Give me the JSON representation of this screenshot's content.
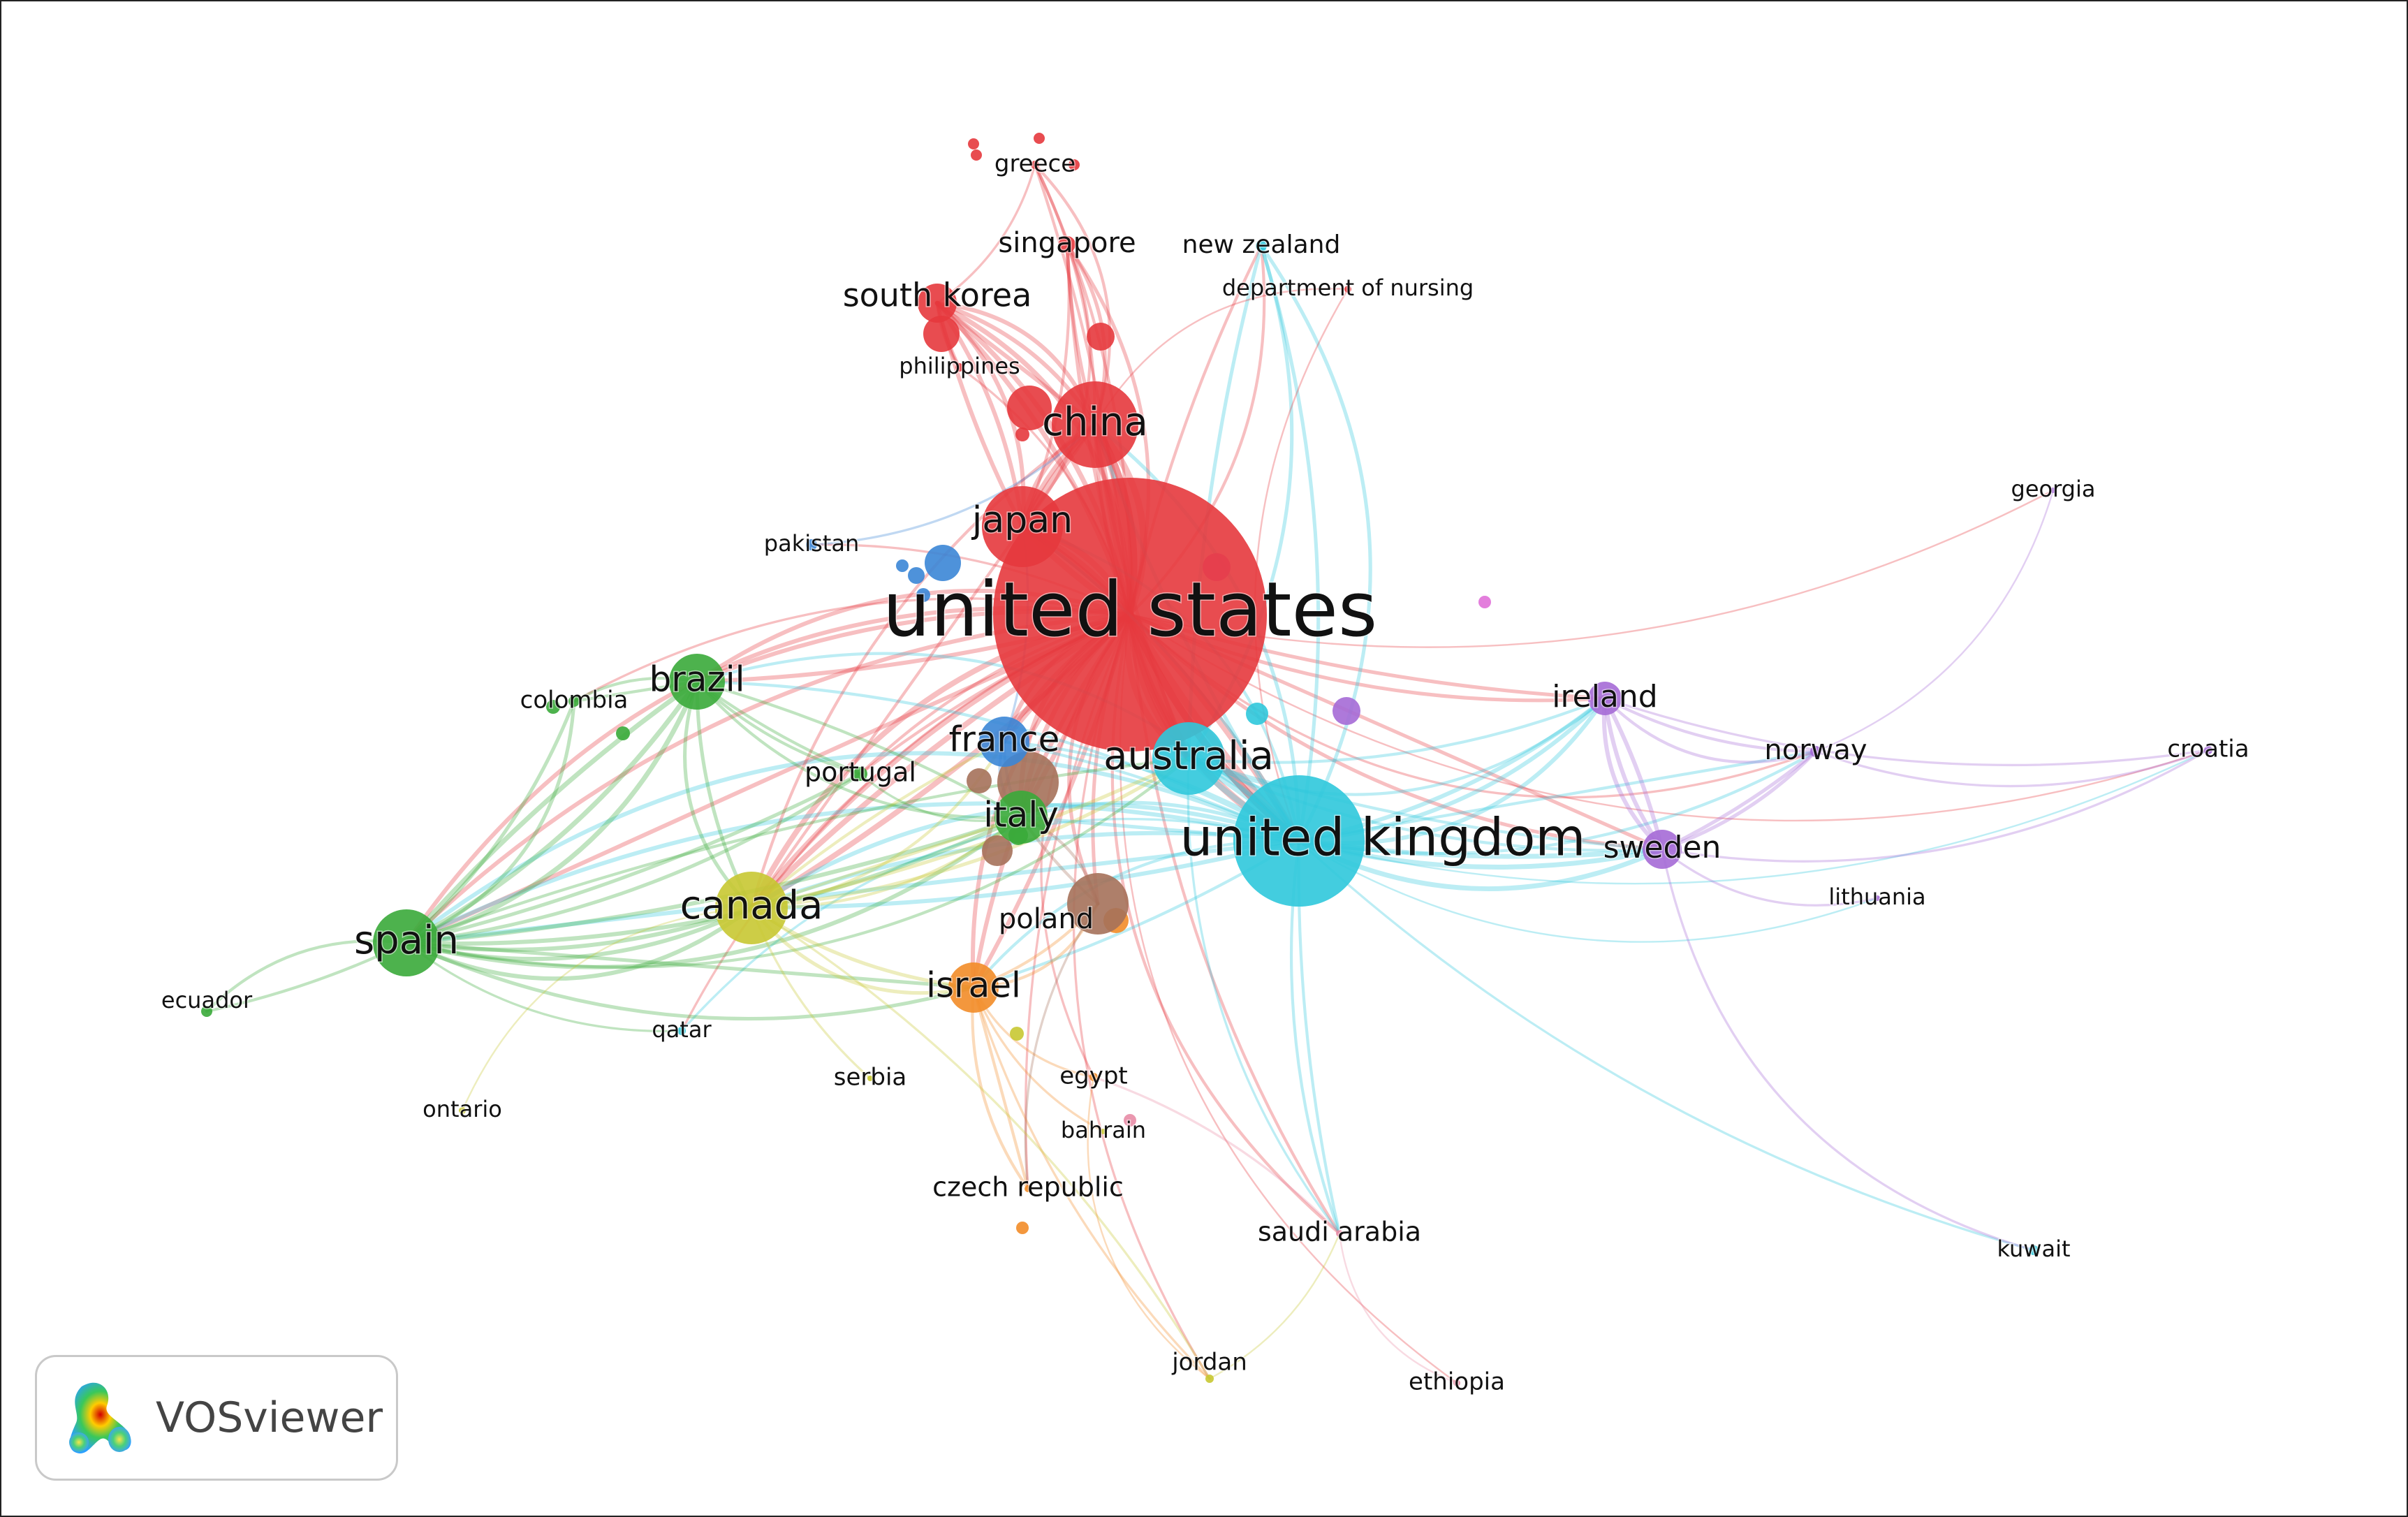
{
  "app": {
    "brand": "VOSviewer"
  },
  "network": {
    "clusters": {
      "red": "#e6393d",
      "cyan": "#2fc8dc",
      "green": "#3aaa3a",
      "blue": "#3b86d6",
      "yellow": "#c8c832",
      "purple": "#a56ad6",
      "orange": "#f28c28",
      "brown": "#a5715a",
      "pink": "#e88ca6",
      "magenta": "#e070d8"
    },
    "nodes": [
      {
        "id": "united-states",
        "label": "united states",
        "cluster": "red",
        "weight": 100
      },
      {
        "id": "united-kingdom",
        "label": "united kingdom",
        "cluster": "cyan",
        "weight": 42
      },
      {
        "id": "china",
        "label": "china",
        "cluster": "red",
        "weight": 18
      },
      {
        "id": "japan",
        "label": "japan",
        "cluster": "red",
        "weight": 16
      },
      {
        "id": "south-korea",
        "label": "south korea",
        "cluster": "red",
        "weight": 8
      },
      {
        "id": "singapore",
        "label": "singapore",
        "cluster": "red",
        "weight": 3
      },
      {
        "id": "greece",
        "label": "greece",
        "cluster": "red",
        "weight": 2
      },
      {
        "id": "philippines",
        "label": "philippines",
        "cluster": "red",
        "weight": 2
      },
      {
        "id": "australia",
        "label": "australia",
        "cluster": "cyan",
        "weight": 18
      },
      {
        "id": "new-zealand",
        "label": "new zealand",
        "cluster": "cyan",
        "weight": 2
      },
      {
        "id": "department-of-nursing",
        "label": "department of nursing",
        "cluster": "red",
        "weight": 1
      },
      {
        "id": "qatar",
        "label": "qatar",
        "cluster": "cyan",
        "weight": 1
      },
      {
        "id": "kuwait",
        "label": "kuwait",
        "cluster": "cyan",
        "weight": 1
      },
      {
        "id": "brazil",
        "label": "brazil",
        "cluster": "green",
        "weight": 11
      },
      {
        "id": "spain",
        "label": "spain",
        "cluster": "green",
        "weight": 18
      },
      {
        "id": "colombia",
        "label": "colombia",
        "cluster": "green",
        "weight": 2
      },
      {
        "id": "ecuador",
        "label": "ecuador",
        "cluster": "green",
        "weight": 2
      },
      {
        "id": "portugal",
        "label": "portugal",
        "cluster": "green",
        "weight": 3
      },
      {
        "id": "italy",
        "label": "italy",
        "cluster": "green",
        "weight": 12
      },
      {
        "id": "france",
        "label": "france",
        "cluster": "blue",
        "weight": 10
      },
      {
        "id": "pakistan",
        "label": "pakistan",
        "cluster": "blue",
        "weight": 1
      },
      {
        "id": "canada",
        "label": "canada",
        "cluster": "yellow",
        "weight": 18
      },
      {
        "id": "serbia",
        "label": "serbia",
        "cluster": "yellow",
        "weight": 1
      },
      {
        "id": "ontario",
        "label": "ontario",
        "cluster": "yellow",
        "weight": 1
      },
      {
        "id": "jordan",
        "label": "jordan",
        "cluster": "yellow",
        "weight": 1
      },
      {
        "id": "bahrain",
        "label": "bahrain",
        "cluster": "yellow",
        "weight": 1
      },
      {
        "id": "israel",
        "label": "israel",
        "cluster": "orange",
        "weight": 10
      },
      {
        "id": "czech-republic",
        "label": "czech republic",
        "cluster": "orange",
        "weight": 1
      },
      {
        "id": "egypt",
        "label": "egypt",
        "cluster": "orange",
        "weight": 1
      },
      {
        "id": "poland",
        "label": "poland",
        "cluster": "brown",
        "weight": 10
      },
      {
        "id": "ireland",
        "label": "ireland",
        "cluster": "purple",
        "weight": 5
      },
      {
        "id": "sweden",
        "label": "sweden",
        "cluster": "purple",
        "weight": 6
      },
      {
        "id": "norway",
        "label": "norway",
        "cluster": "purple",
        "weight": 2
      },
      {
        "id": "croatia",
        "label": "croatia",
        "cluster": "purple",
        "weight": 1
      },
      {
        "id": "lithuania",
        "label": "lithuania",
        "cluster": "purple",
        "weight": 1
      },
      {
        "id": "georgia",
        "label": "georgia",
        "cluster": "purple",
        "weight": 1
      },
      {
        "id": "saudi-arabia",
        "label": "saudi arabia",
        "cluster": "pink",
        "weight": 2
      },
      {
        "id": "ethiopia",
        "label": "ethiopia",
        "cluster": "pink",
        "weight": 1
      }
    ],
    "links": [
      [
        "united-states",
        "united-kingdom",
        10
      ],
      [
        "united-states",
        "china",
        9
      ],
      [
        "united-states",
        "japan",
        8
      ],
      [
        "united-states",
        "australia",
        8
      ],
      [
        "united-states",
        "canada",
        7
      ],
      [
        "united-states",
        "spain",
        5
      ],
      [
        "united-states",
        "brazil",
        5
      ],
      [
        "united-states",
        "south-korea",
        6
      ],
      [
        "united-states",
        "france",
        5
      ],
      [
        "united-states",
        "italy",
        6
      ],
      [
        "united-states",
        "israel",
        5
      ],
      [
        "united-states",
        "poland",
        4
      ],
      [
        "united-states",
        "ireland",
        4
      ],
      [
        "united-states",
        "sweden",
        4
      ],
      [
        "united-states",
        "singapore",
        4
      ],
      [
        "united-states",
        "saudi-arabia",
        3
      ],
      [
        "united-states",
        "greece",
        3
      ],
      [
        "united-states",
        "philippines",
        2
      ],
      [
        "united-states",
        "new-zealand",
        3
      ],
      [
        "united-states",
        "norway",
        2
      ],
      [
        "united-states",
        "portugal",
        3
      ],
      [
        "united-states",
        "colombia",
        2
      ],
      [
        "united-states",
        "jordan",
        2
      ],
      [
        "united-states",
        "egypt",
        2
      ],
      [
        "united-states",
        "pakistan",
        2
      ],
      [
        "united-states",
        "georgia",
        1
      ],
      [
        "united-states",
        "croatia",
        1
      ],
      [
        "united-states",
        "ethiopia",
        1
      ],
      [
        "united-states",
        "czech-republic",
        2
      ],
      [
        "united-states",
        "qatar",
        2
      ],
      [
        "united-kingdom",
        "australia",
        7
      ],
      [
        "united-kingdom",
        "ireland",
        5
      ],
      [
        "united-kingdom",
        "sweden",
        6
      ],
      [
        "united-kingdom",
        "spain",
        5
      ],
      [
        "united-kingdom",
        "canada",
        5
      ],
      [
        "united-kingdom",
        "new-zealand",
        4
      ],
      [
        "united-kingdom",
        "kuwait",
        2
      ],
      [
        "united-kingdom",
        "norway",
        3
      ],
      [
        "united-kingdom",
        "china",
        4
      ],
      [
        "united-kingdom",
        "japan",
        3
      ],
      [
        "united-kingdom",
        "saudi-arabia",
        3
      ],
      [
        "united-kingdom",
        "italy",
        4
      ],
      [
        "united-kingdom",
        "israel",
        3
      ],
      [
        "united-kingdom",
        "brazil",
        3
      ],
      [
        "united-kingdom",
        "france",
        3
      ],
      [
        "united-kingdom",
        "croatia",
        1
      ],
      [
        "united-kingdom",
        "lithuania",
        1
      ],
      [
        "united-kingdom",
        "qatar",
        2
      ],
      [
        "china",
        "japan",
        6
      ],
      [
        "china",
        "south-korea",
        5
      ],
      [
        "china",
        "singapore",
        4
      ],
      [
        "china",
        "greece",
        3
      ],
      [
        "china",
        "australia",
        4
      ],
      [
        "china",
        "canada",
        3
      ],
      [
        "japan",
        "south-korea",
        5
      ],
      [
        "japan",
        "singapore",
        3
      ],
      [
        "south-korea",
        "philippines",
        3
      ],
      [
        "south-korea",
        "greece",
        2
      ],
      [
        "spain",
        "brazil",
        6
      ],
      [
        "spain",
        "canada",
        5
      ],
      [
        "spain",
        "italy",
        5
      ],
      [
        "spain",
        "israel",
        4
      ],
      [
        "spain",
        "ecuador",
        3
      ],
      [
        "spain",
        "colombia",
        4
      ],
      [
        "spain",
        "portugal",
        4
      ],
      [
        "spain",
        "qatar",
        2
      ],
      [
        "spain",
        "australia",
        3
      ],
      [
        "brazil",
        "canada",
        4
      ],
      [
        "brazil",
        "portugal",
        3
      ],
      [
        "brazil",
        "colombia",
        3
      ],
      [
        "brazil",
        "italy",
        3
      ],
      [
        "canada",
        "israel",
        4
      ],
      [
        "canada",
        "australia",
        4
      ],
      [
        "canada",
        "italy",
        3
      ],
      [
        "canada",
        "france",
        3
      ],
      [
        "canada",
        "ontario",
        1
      ],
      [
        "canada",
        "serbia",
        2
      ],
      [
        "israel",
        "czech-republic",
        3
      ],
      [
        "israel",
        "egypt",
        2
      ],
      [
        "israel",
        "poland",
        3
      ],
      [
        "israel",
        "jordan",
        2
      ],
      [
        "israel",
        "bahrain",
        2
      ],
      [
        "australia",
        "new-zealand",
        4
      ],
      [
        "australia",
        "ireland",
        3
      ],
      [
        "australia",
        "sweden",
        3
      ],
      [
        "australia",
        "saudi-arabia",
        2
      ],
      [
        "ireland",
        "sweden",
        5
      ],
      [
        "ireland",
        "norway",
        3
      ],
      [
        "sweden",
        "norway",
        4
      ],
      [
        "sweden",
        "croatia",
        2
      ],
      [
        "sweden",
        "lithuania",
        2
      ],
      [
        "sweden",
        "kuwait",
        2
      ],
      [
        "ireland",
        "croatia",
        2
      ],
      [
        "norway",
        "croatia",
        2
      ],
      [
        "norway",
        "georgia",
        1
      ],
      [
        "saudi-arabia",
        "ethiopia",
        1
      ],
      [
        "saudi-arabia",
        "egypt",
        2
      ],
      [
        "poland",
        "czech-republic",
        2
      ],
      [
        "poland",
        "italy",
        3
      ],
      [
        "france",
        "italy",
        3
      ],
      [
        "france",
        "japan",
        2
      ],
      [
        "pakistan",
        "china",
        2
      ],
      [
        "department-of-nursing",
        "united-kingdom",
        1
      ],
      [
        "department-of-nursing",
        "china",
        1
      ],
      [
        "jordan",
        "canada",
        2
      ],
      [
        "jordan",
        "saudi-arabia",
        1
      ],
      [
        "portugal",
        "italy",
        2
      ],
      [
        "egypt",
        "jordan",
        1
      ]
    ]
  }
}
